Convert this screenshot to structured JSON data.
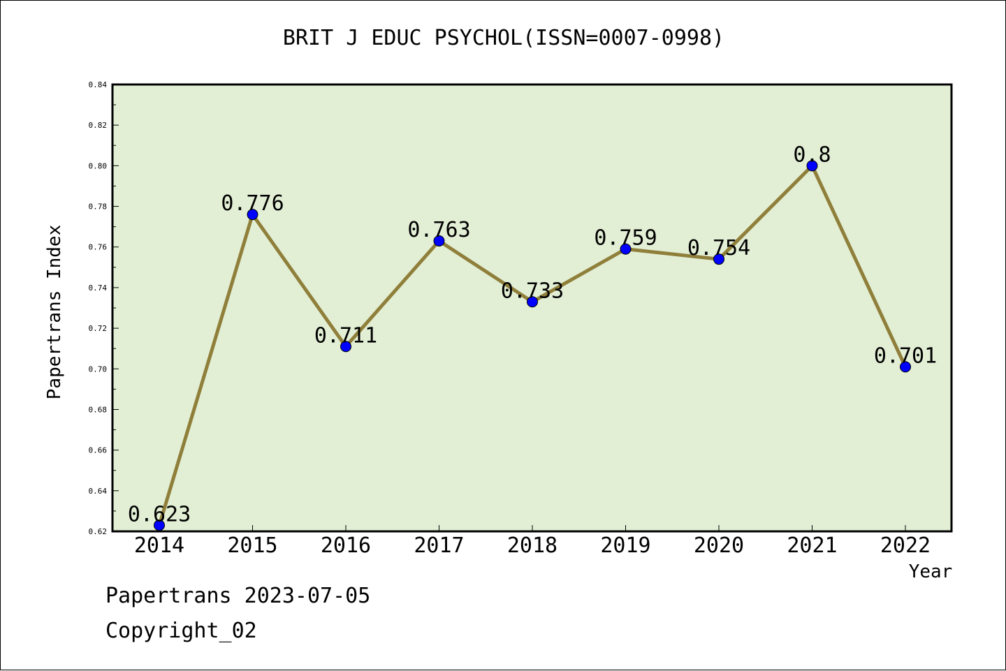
{
  "chart_data": {
    "type": "line",
    "title": "BRIT J EDUC PSYCHOL(ISSN=0007-0998)",
    "xlabel": "Year",
    "ylabel": "Papertrans Index",
    "categories": [
      "2014",
      "2015",
      "2016",
      "2017",
      "2018",
      "2019",
      "2020",
      "2021",
      "2022"
    ],
    "values": [
      0.623,
      0.776,
      0.711,
      0.763,
      0.733,
      0.759,
      0.754,
      0.8,
      0.701
    ],
    "data_labels": [
      "0.623",
      "0.776",
      "0.711",
      "0.763",
      "0.733",
      "0.759",
      "0.754",
      "0.8",
      "0.701"
    ],
    "ylim": [
      0.62,
      0.84
    ],
    "yticks": [
      "0.62",
      "0.64",
      "0.66",
      "0.68",
      "0.70",
      "0.72",
      "0.74",
      "0.76",
      "0.78",
      "0.80",
      "0.82",
      "0.84"
    ],
    "grid": false,
    "colors": {
      "plot_background": "#e2efd5",
      "line": "#8f7f3a",
      "marker": "#0000ff",
      "axis": "#000000"
    }
  },
  "footer": {
    "date_text": "Papertrans 2023-07-05",
    "copyright_text": "Copyright_02"
  }
}
